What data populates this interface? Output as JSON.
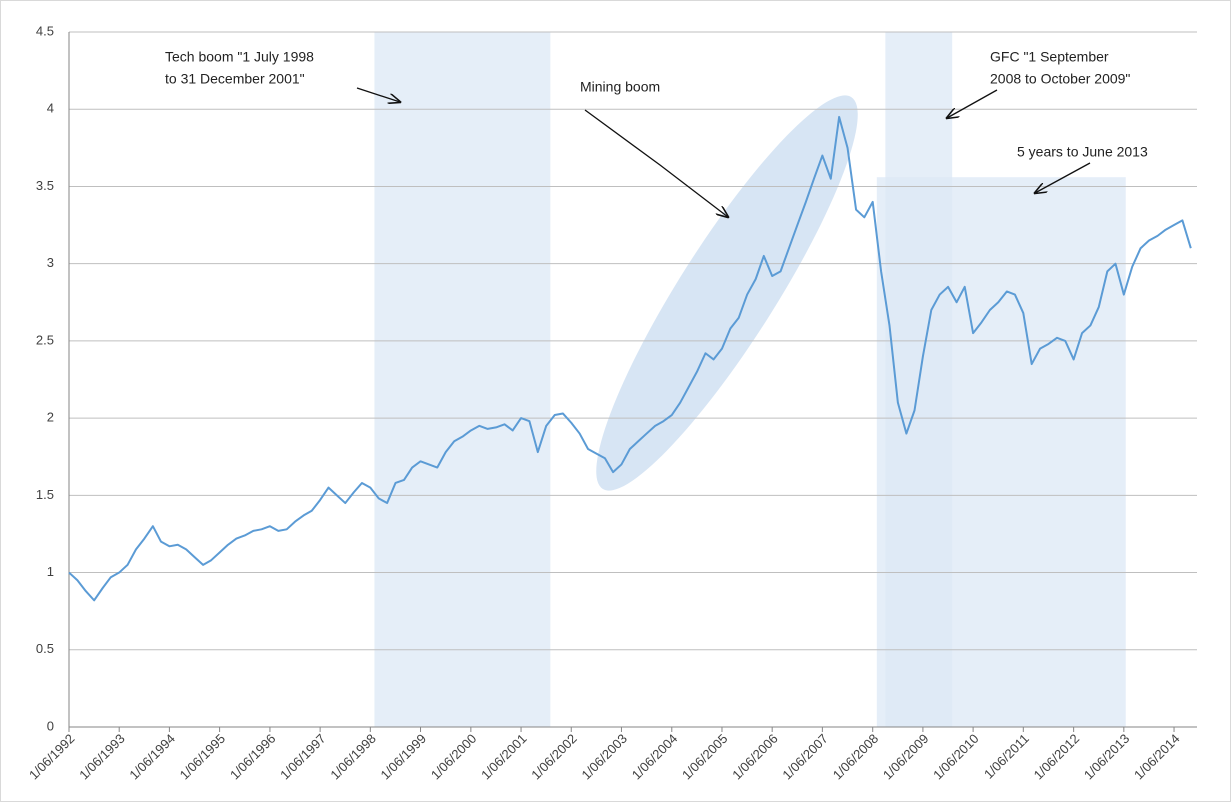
{
  "chart_data": {
    "type": "line",
    "x": [
      "1992-06-01",
      "1992-08-01",
      "1992-10-01",
      "1992-12-01",
      "1993-02-01",
      "1993-04-01",
      "1993-06-01",
      "1993-08-01",
      "1993-10-01",
      "1993-12-01",
      "1994-02-01",
      "1994-04-01",
      "1994-06-01",
      "1994-08-01",
      "1994-10-01",
      "1994-12-01",
      "1995-02-01",
      "1995-04-01",
      "1995-06-01",
      "1995-08-01",
      "1995-10-01",
      "1995-12-01",
      "1996-02-01",
      "1996-04-01",
      "1996-06-01",
      "1996-08-01",
      "1996-10-01",
      "1996-12-01",
      "1997-02-01",
      "1997-04-01",
      "1997-06-01",
      "1997-08-01",
      "1997-10-01",
      "1997-12-01",
      "1998-02-01",
      "1998-04-01",
      "1998-06-01",
      "1998-08-01",
      "1998-10-01",
      "1998-12-01",
      "1999-02-01",
      "1999-04-01",
      "1999-06-01",
      "1999-08-01",
      "1999-10-01",
      "1999-12-01",
      "2000-02-01",
      "2000-04-01",
      "2000-06-01",
      "2000-08-01",
      "2000-10-01",
      "2000-12-01",
      "2001-02-01",
      "2001-04-01",
      "2001-06-01",
      "2001-08-01",
      "2001-10-01",
      "2001-12-01",
      "2002-02-01",
      "2002-04-01",
      "2002-06-01",
      "2002-08-01",
      "2002-10-01",
      "2002-12-01",
      "2003-02-01",
      "2003-04-01",
      "2003-06-01",
      "2003-08-01",
      "2003-10-01",
      "2003-12-01",
      "2004-02-01",
      "2004-04-01",
      "2004-06-01",
      "2004-08-01",
      "2004-10-01",
      "2004-12-01",
      "2005-02-01",
      "2005-04-01",
      "2005-06-01",
      "2005-08-01",
      "2005-10-01",
      "2005-12-01",
      "2006-02-01",
      "2006-04-01",
      "2006-06-01",
      "2006-08-01",
      "2006-10-01",
      "2006-12-01",
      "2007-02-01",
      "2007-04-01",
      "2007-06-01",
      "2007-08-01",
      "2007-10-01",
      "2007-12-01",
      "2008-02-01",
      "2008-04-01",
      "2008-06-01",
      "2008-08-01",
      "2008-10-01",
      "2008-12-01",
      "2009-02-01",
      "2009-04-01",
      "2009-06-01",
      "2009-08-01",
      "2009-10-01",
      "2009-12-01",
      "2010-02-01",
      "2010-04-01",
      "2010-06-01",
      "2010-08-01",
      "2010-10-01",
      "2010-12-01",
      "2011-02-01",
      "2011-04-01",
      "2011-06-01",
      "2011-08-01",
      "2011-10-01",
      "2011-12-01",
      "2012-02-01",
      "2012-04-01",
      "2012-06-01",
      "2012-08-01",
      "2012-10-01",
      "2012-12-01",
      "2013-02-01",
      "2013-04-01",
      "2013-06-01",
      "2013-08-01",
      "2013-10-01",
      "2013-12-01",
      "2014-02-01",
      "2014-04-01",
      "2014-06-01",
      "2014-08-01",
      "2014-10-01"
    ],
    "series": [
      {
        "color": "#5b9bd5",
        "values": [
          1.0,
          0.95,
          0.88,
          0.82,
          0.9,
          0.97,
          1.0,
          1.05,
          1.15,
          1.22,
          1.3,
          1.2,
          1.17,
          1.18,
          1.15,
          1.1,
          1.05,
          1.08,
          1.13,
          1.18,
          1.22,
          1.24,
          1.27,
          1.28,
          1.3,
          1.27,
          1.28,
          1.33,
          1.37,
          1.4,
          1.47,
          1.55,
          1.5,
          1.45,
          1.52,
          1.58,
          1.55,
          1.48,
          1.45,
          1.58,
          1.6,
          1.68,
          1.72,
          1.7,
          1.68,
          1.78,
          1.85,
          1.88,
          1.92,
          1.95,
          1.93,
          1.94,
          1.96,
          1.92,
          2.0,
          1.98,
          1.78,
          1.95,
          2.02,
          2.03,
          1.97,
          1.9,
          1.8,
          1.77,
          1.74,
          1.65,
          1.7,
          1.8,
          1.85,
          1.9,
          1.95,
          1.98,
          2.02,
          2.1,
          2.2,
          2.3,
          2.42,
          2.38,
          2.45,
          2.58,
          2.65,
          2.8,
          2.9,
          3.05,
          2.92,
          2.95,
          3.1,
          3.25,
          3.4,
          3.55,
          3.7,
          3.55,
          3.95,
          3.75,
          3.35,
          3.3,
          3.4,
          2.95,
          2.6,
          2.1,
          1.9,
          2.05,
          2.4,
          2.7,
          2.8,
          2.85,
          2.75,
          2.85,
          2.55,
          2.62,
          2.7,
          2.75,
          2.82,
          2.8,
          2.68,
          2.35,
          2.45,
          2.48,
          2.52,
          2.5,
          2.38,
          2.55,
          2.6,
          2.72,
          2.95,
          3.0,
          2.8,
          2.98,
          3.1,
          3.15,
          3.18,
          3.22,
          3.25,
          3.28,
          3.1
        ]
      }
    ],
    "xlim": [
      "1992-06-01",
      "2014-11-15"
    ],
    "xticks": [
      {
        "value": "1992-06-01",
        "label": "1/06/1992"
      },
      {
        "value": "1993-06-01",
        "label": "1/06/1993"
      },
      {
        "value": "1994-06-01",
        "label": "1/06/1994"
      },
      {
        "value": "1995-06-01",
        "label": "1/06/1995"
      },
      {
        "value": "1996-06-01",
        "label": "1/06/1996"
      },
      {
        "value": "1997-06-01",
        "label": "1/06/1997"
      },
      {
        "value": "1998-06-01",
        "label": "1/06/1998"
      },
      {
        "value": "1999-06-01",
        "label": "1/06/1999"
      },
      {
        "value": "2000-06-01",
        "label": "1/06/2000"
      },
      {
        "value": "2001-06-01",
        "label": "1/06/2001"
      },
      {
        "value": "2002-06-01",
        "label": "1/06/2002"
      },
      {
        "value": "2003-06-01",
        "label": "1/06/2003"
      },
      {
        "value": "2004-06-01",
        "label": "1/06/2004"
      },
      {
        "value": "2005-06-01",
        "label": "1/06/2005"
      },
      {
        "value": "2006-06-01",
        "label": "1/06/2006"
      },
      {
        "value": "2007-06-01",
        "label": "1/06/2007"
      },
      {
        "value": "2008-06-01",
        "label": "1/06/2008"
      },
      {
        "value": "2009-06-01",
        "label": "1/06/2009"
      },
      {
        "value": "2010-06-01",
        "label": "1/06/2010"
      },
      {
        "value": "2011-06-01",
        "label": "1/06/2011"
      },
      {
        "value": "2012-06-01",
        "label": "1/06/2012"
      },
      {
        "value": "2013-06-01",
        "label": "1/06/2013"
      },
      {
        "value": "2014-06-01",
        "label": "1/06/2014"
      }
    ],
    "ylim": [
      0,
      4.5
    ],
    "yticks": [
      0,
      0.5,
      1,
      1.5,
      2,
      2.5,
      3,
      3.5,
      4,
      4.5
    ],
    "grid": true,
    "shaded_regions": [
      {
        "x": [
          "1998-07-01",
          "2001-12-31"
        ],
        "y": [
          0,
          4.5
        ],
        "color": "#dce8f5"
      },
      {
        "x": [
          "2008-09-01",
          "2009-12-31"
        ],
        "y": [
          0,
          4.5
        ],
        "color": "#dce8f5"
      },
      {
        "x": [
          "2008-07-01",
          "2013-06-15"
        ],
        "y": [
          0,
          3.56
        ],
        "color": "#dce8f5"
      }
    ],
    "annotations": [
      {
        "lines": [
          "Tech boom \"1 July 1998",
          "to 31 December 2001\""
        ]
      },
      {
        "lines": [
          "Mining boom"
        ]
      },
      {
        "lines": [
          "GFC \"1 September",
          "2008 to October 2009\""
        ]
      },
      {
        "lines": [
          "5 years to June 2013"
        ]
      }
    ]
  }
}
